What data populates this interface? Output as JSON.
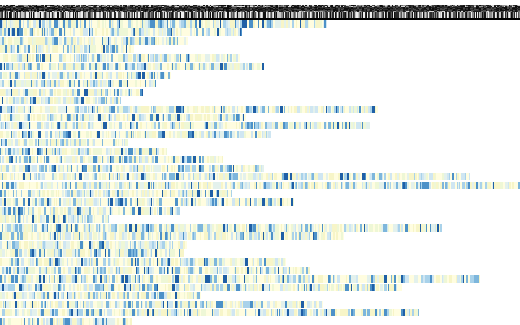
{
  "header": {
    "noise_colors": [
      "#0d0d0d",
      "#1c1c1c",
      "#303030",
      "#4a4a4a",
      "#6e6e6e",
      "#9a9a9a",
      "#d8d8d8"
    ],
    "stripe_colors": [
      "#111111",
      "#2a2a2a",
      "#555555",
      "#8c8c8c",
      "#c8c8c8",
      "#efefef"
    ],
    "rule_color": "#000000"
  },
  "palette": {
    "background": "#ffffff",
    "cells": [
      "#fffde0",
      "#f7f5c8",
      "#eef7d6",
      "#e3f1ec",
      "#cfe6f2",
      "#a9d2ea",
      "#7db6dc",
      "#4d91c8",
      "#1f5fa6"
    ],
    "weights": [
      26,
      18,
      12,
      10,
      9,
      8,
      7,
      6,
      4
    ]
  },
  "rows": [
    {
      "extent": 0.63
    },
    {
      "extent": 0.465
    },
    {
      "extent": 0.362
    },
    {
      "extent": 0.258
    },
    {
      "extent": 0.463
    },
    {
      "extent": 0.508
    },
    {
      "extent": 0.33
    },
    {
      "extent": 0.3
    },
    {
      "extent": 0.275
    },
    {
      "extent": 0.233
    },
    {
      "extent": 0.727
    },
    {
      "extent": 0.473
    },
    {
      "extent": 0.713
    },
    {
      "extent": 0.522
    },
    {
      "extent": 0.245
    },
    {
      "extent": 0.322
    },
    {
      "extent": 0.43
    },
    {
      "extent": 0.508
    },
    {
      "extent": 0.905
    },
    {
      "extent": 1.0
    },
    {
      "extent": 0.447
    },
    {
      "extent": 0.566
    },
    {
      "extent": 0.347
    },
    {
      "extent": 0.209
    },
    {
      "extent": 0.85
    },
    {
      "extent": 0.662
    },
    {
      "extent": 0.36
    },
    {
      "extent": 0.353
    },
    {
      "extent": 0.55
    },
    {
      "extent": 0.597
    },
    {
      "extent": 0.923
    },
    {
      "extent": 0.773
    },
    {
      "extent": 0.388
    },
    {
      "extent": 0.621
    },
    {
      "extent": 0.807
    },
    {
      "extent": 0.255
    }
  ]
}
